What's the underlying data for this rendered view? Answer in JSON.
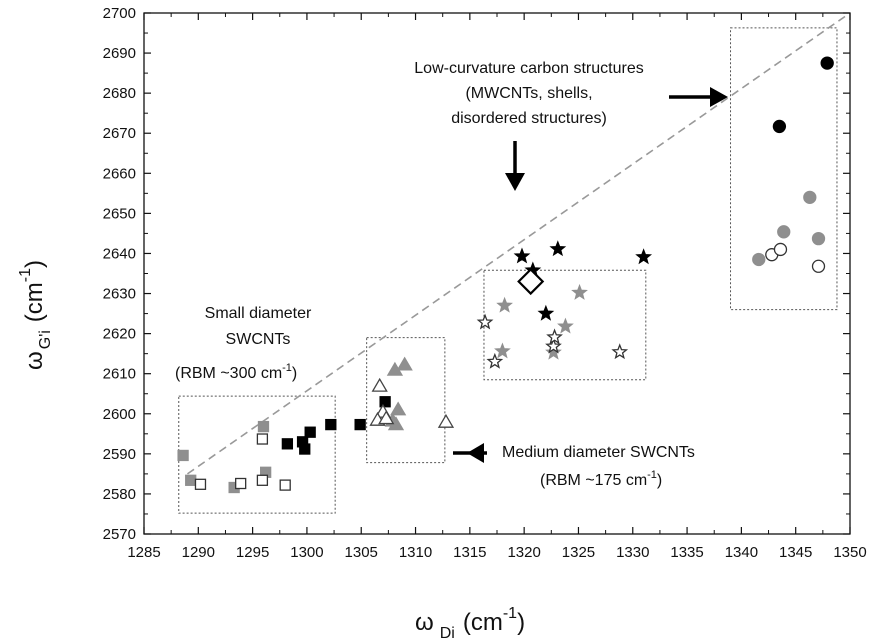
{
  "chart_data": {
    "type": "scatter",
    "xlabel": {
      "main": "ω",
      "sub": "Di",
      "unit": "(cm",
      "sup": "-1",
      "close": ")"
    },
    "ylabel": {
      "main": "ω",
      "sub": "G'i",
      "unit": "(cm",
      "sup": "-1",
      "close": ")"
    },
    "xlim": [
      1285,
      1350
    ],
    "ylim": [
      2570,
      2700
    ],
    "xticks": [
      "1285",
      "1290",
      "1295",
      "1300",
      "1305",
      "1310",
      "1315",
      "1320",
      "1325",
      "1330",
      "1335",
      "1340",
      "1345",
      "1350"
    ],
    "yticks": [
      "2570",
      "2580",
      "2590",
      "2600",
      "2610",
      "2620",
      "2630",
      "2640",
      "2650",
      "2660",
      "2670",
      "2680",
      "2690",
      "2700"
    ],
    "reference_line": {
      "style": "dashed",
      "color": "#999999",
      "from": [
        1289,
        2585
      ],
      "to": [
        1350,
        2700
      ]
    },
    "regions": [
      {
        "name": "small",
        "x0": 1288.2,
        "x1": 1302.6,
        "y0": 2575.2,
        "y1": 2604.4
      },
      {
        "name": "medium",
        "x0": 1305.5,
        "x1": 1312.7,
        "y0": 2587.8,
        "y1": 2619.0
      },
      {
        "name": "low-curvature",
        "x0": 1316.3,
        "x1": 1331.2,
        "y0": 2608.5,
        "y1": 2635.8
      },
      {
        "name": "high",
        "x0": 1339.0,
        "x1": 1348.8,
        "y0": 2626.0,
        "y1": 2696.3
      }
    ],
    "series": [
      {
        "marker": "square",
        "fill": "#000000",
        "stroke": "#000000",
        "points": [
          [
            1298.2,
            2592.5
          ],
          [
            1299.6,
            2593.0
          ],
          [
            1299.8,
            2591.2
          ],
          [
            1300.3,
            2595.4
          ],
          [
            1302.2,
            2597.3
          ],
          [
            1304.9,
            2597.3
          ],
          [
            1307.2,
            2603.0
          ]
        ]
      },
      {
        "marker": "square",
        "fill": "#8f8f8f",
        "stroke": "#8f8f8f",
        "points": [
          [
            1288.6,
            2589.6
          ],
          [
            1289.3,
            2583.4
          ],
          [
            1293.3,
            2581.6
          ],
          [
            1296.0,
            2596.8
          ],
          [
            1296.2,
            2585.4
          ]
        ]
      },
      {
        "marker": "square",
        "fill": "#ffffff",
        "stroke": "#333333",
        "points": [
          [
            1290.2,
            2582.4
          ],
          [
            1293.9,
            2582.6
          ],
          [
            1295.9,
            2583.4
          ],
          [
            1295.9,
            2593.7
          ],
          [
            1298.0,
            2582.2
          ]
        ]
      },
      {
        "marker": "triangle",
        "fill": "#8f8f8f",
        "stroke": "#8f8f8f",
        "points": [
          [
            1308.1,
            2610.9
          ],
          [
            1309.0,
            2612.2
          ],
          [
            1307.9,
            2598.2
          ],
          [
            1308.2,
            2597.3
          ],
          [
            1308.4,
            2601.0
          ]
        ]
      },
      {
        "marker": "triangle",
        "fill": "#ffffff",
        "stroke": "#444444",
        "points": [
          [
            1306.7,
            2606.9
          ],
          [
            1307.0,
            2600.4
          ],
          [
            1306.5,
            2598.4
          ],
          [
            1307.3,
            2598.8
          ],
          [
            1312.8,
            2597.9
          ]
        ]
      },
      {
        "marker": "star",
        "fill": "#000000",
        "stroke": "#000000",
        "points": [
          [
            1319.8,
            2639.3
          ],
          [
            1320.8,
            2635.8
          ],
          [
            1322.0,
            2625.0
          ],
          [
            1323.1,
            2641.1
          ],
          [
            1331.0,
            2639.1
          ]
        ]
      },
      {
        "marker": "star",
        "fill": "#8f8f8f",
        "stroke": "#8f8f8f",
        "points": [
          [
            1318.0,
            2615.6
          ],
          [
            1318.2,
            2627.0
          ],
          [
            1322.7,
            2615.3
          ],
          [
            1323.8,
            2621.8
          ],
          [
            1325.1,
            2630.2
          ]
        ]
      },
      {
        "marker": "star",
        "fill": "#ffffff",
        "stroke": "#333333",
        "points": [
          [
            1316.4,
            2622.8
          ],
          [
            1317.3,
            2613.0
          ],
          [
            1322.7,
            2616.8
          ],
          [
            1322.8,
            2619.1
          ],
          [
            1328.8,
            2615.4
          ]
        ]
      },
      {
        "marker": "diamond",
        "fill": "#ffffff",
        "stroke": "#000000",
        "size": 12,
        "points": [
          [
            1320.6,
            2633.0
          ]
        ]
      },
      {
        "marker": "circle",
        "fill": "#000000",
        "stroke": "#000000",
        "points": [
          [
            1343.5,
            2671.7
          ],
          [
            1347.9,
            2687.5
          ]
        ]
      },
      {
        "marker": "circle",
        "fill": "#8f8f8f",
        "stroke": "#8f8f8f",
        "points": [
          [
            1341.6,
            2638.5
          ],
          [
            1343.9,
            2645.4
          ],
          [
            1346.3,
            2654.0
          ],
          [
            1347.1,
            2643.7
          ]
        ]
      },
      {
        "marker": "circle",
        "fill": "#ffffff",
        "stroke": "#333333",
        "points": [
          [
            1342.8,
            2639.7
          ],
          [
            1343.6,
            2641.0
          ],
          [
            1347.1,
            2636.8
          ]
        ]
      }
    ],
    "annotations": {
      "low_curvature": [
        "Low-curvature carbon structures",
        "(MWCNTs, shells,",
        "disordered structures)"
      ],
      "small": {
        "line1": "Small diameter",
        "line2": "SWCNTs",
        "line3_pre": "(RBM  ~300 cm",
        "line3_sup": "-1",
        "line3_post": ")"
      },
      "medium": {
        "line1": "Medium diameter SWCNTs",
        "line2_pre": "(RBM ~175 cm",
        "line2_sup": "-1",
        "line2_post": ")"
      }
    }
  }
}
